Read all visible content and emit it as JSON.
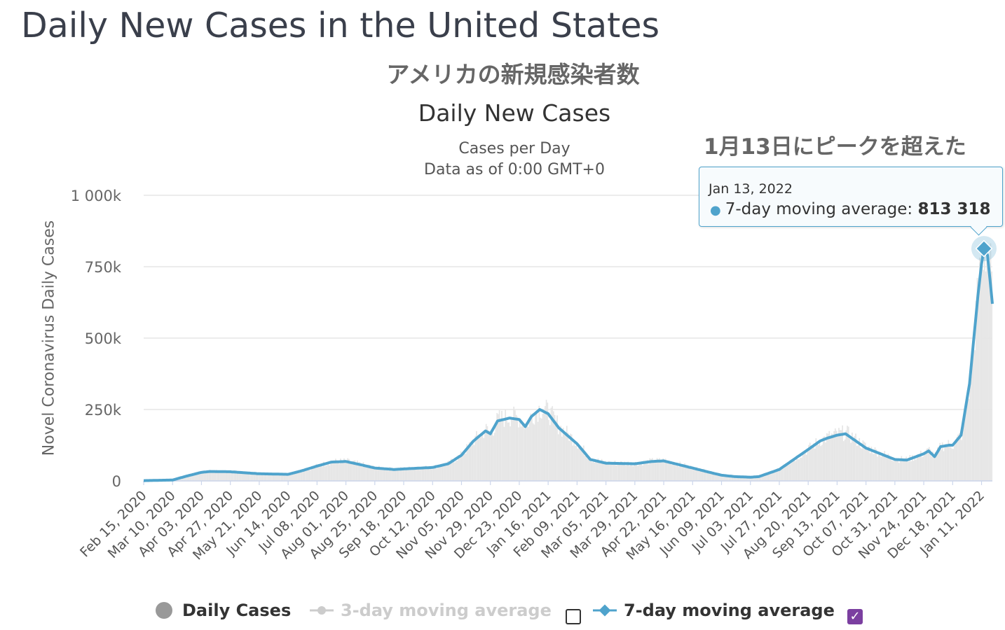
{
  "headline": "Daily New Cases in the United States",
  "jp_subtitle": "アメリカの新規感染者数",
  "annotation": "1月13日にピークを超えた",
  "tooltip": {
    "date": "Jan 13, 2022",
    "series": "7-day moving average:",
    "value": "813 318"
  },
  "legend": {
    "daily_cases": "Daily Cases",
    "three_day": "3-day moving average",
    "seven_day": "7-day moving average",
    "three_day_checked": false,
    "seven_day_checked": true,
    "check_mark": "✓"
  },
  "colors": {
    "daily_bars": "#e6e6e6",
    "line": "#4fa3cc",
    "grid": "#e6e6e6",
    "legend_disabled": "#cccccc",
    "checkbox": "#7b3fa0"
  },
  "chart_data": {
    "type": "line",
    "title": "Daily New Cases",
    "subtitle_lines": [
      "Cases per Day",
      "Data as of 0:00 GMT+0"
    ],
    "ylabel": "Novel Coronavirus Daily Cases",
    "ylim": [
      0,
      1000000
    ],
    "yticks": [
      0,
      250000,
      500000,
      750000,
      1000000
    ],
    "ytick_labels": [
      "0",
      "250k",
      "500k",
      "750k",
      "1 000k"
    ],
    "xlim": [
      "2020-02-15",
      "2022-01-20"
    ],
    "xtick_labels": [
      "Feb 15, 2020",
      "Mar 10, 2020",
      "Apr 03, 2020",
      "Apr 27, 2020",
      "May 21, 2020",
      "Jun 14, 2020",
      "Jul 08, 2020",
      "Aug 01, 2020",
      "Aug 25, 2020",
      "Sep 18, 2020",
      "Oct 12, 2020",
      "Nov 05, 2020",
      "Nov 29, 2020",
      "Dec 23, 2020",
      "Jan 16, 2021",
      "Feb 09, 2021",
      "Mar 05, 2021",
      "Mar 29, 2021",
      "Apr 22, 2021",
      "May 16, 2021",
      "Jun 09, 2021",
      "Jul 03, 2021",
      "Jul 27, 2021",
      "Aug 20, 2021",
      "Sep 13, 2021",
      "Oct 07, 2021",
      "Oct 31, 2021",
      "Nov 24, 2021",
      "Dec 18, 2021",
      "Jan 11, 2022"
    ],
    "grid": true,
    "legend_position": "bottom",
    "series": [
      {
        "name": "7-day moving average",
        "x": [
          "2020-02-15",
          "2020-03-10",
          "2020-03-20",
          "2020-04-03",
          "2020-04-10",
          "2020-04-27",
          "2020-05-21",
          "2020-06-14",
          "2020-06-25",
          "2020-07-08",
          "2020-07-20",
          "2020-08-01",
          "2020-08-15",
          "2020-08-25",
          "2020-09-10",
          "2020-09-18",
          "2020-10-12",
          "2020-10-25",
          "2020-11-05",
          "2020-11-15",
          "2020-11-25",
          "2020-11-29",
          "2020-12-05",
          "2020-12-15",
          "2020-12-23",
          "2020-12-28",
          "2021-01-02",
          "2021-01-09",
          "2021-01-16",
          "2021-01-25",
          "2021-02-09",
          "2021-02-20",
          "2021-03-05",
          "2021-03-29",
          "2021-04-12",
          "2021-04-22",
          "2021-05-16",
          "2021-06-01",
          "2021-06-09",
          "2021-06-20",
          "2021-07-03",
          "2021-07-10",
          "2021-07-27",
          "2021-08-20",
          "2021-08-30",
          "2021-09-05",
          "2021-09-13",
          "2021-09-20",
          "2021-10-07",
          "2021-10-31",
          "2021-11-10",
          "2021-11-24",
          "2021-11-28",
          "2021-12-03",
          "2021-12-08",
          "2021-12-15",
          "2021-12-18",
          "2021-12-25",
          "2022-01-01",
          "2022-01-08",
          "2022-01-11",
          "2022-01-13",
          "2022-01-16",
          "2022-01-20"
        ],
        "y": [
          1000,
          3000,
          15000,
          30000,
          33000,
          32000,
          25000,
          23000,
          35000,
          52000,
          66000,
          68000,
          55000,
          45000,
          40000,
          42000,
          47000,
          60000,
          90000,
          140000,
          175000,
          165000,
          210000,
          220000,
          215000,
          190000,
          225000,
          250000,
          235000,
          185000,
          130000,
          75000,
          62000,
          60000,
          68000,
          70000,
          45000,
          28000,
          20000,
          15000,
          13000,
          15000,
          40000,
          110000,
          140000,
          150000,
          160000,
          165000,
          115000,
          75000,
          73000,
          95000,
          105000,
          85000,
          120000,
          125000,
          125000,
          160000,
          340000,
          650000,
          760000,
          813318,
          790000,
          620000
        ]
      }
    ],
    "highlight": {
      "x": "2022-01-13",
      "y": 813318
    }
  }
}
